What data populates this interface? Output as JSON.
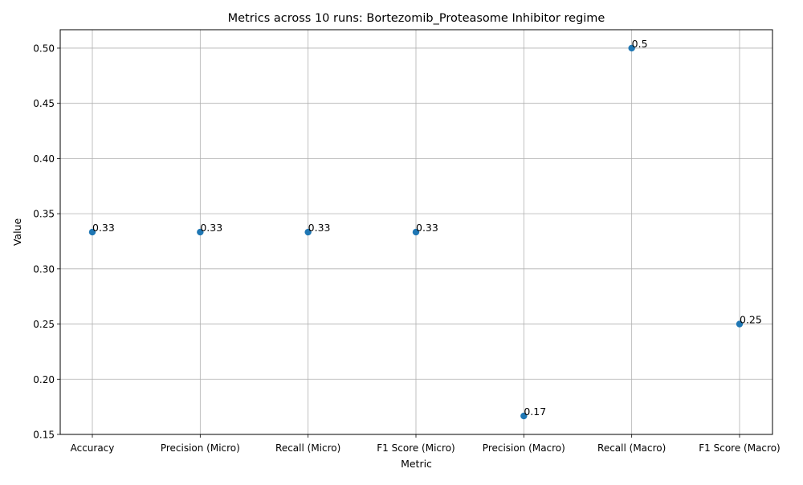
{
  "chart_data": {
    "type": "scatter",
    "title": "Metrics across 10 runs: Bortezomib_Proteasome Inhibitor regime",
    "xlabel": "Metric",
    "ylabel": "Value",
    "categories": [
      "Accuracy",
      "Precision (Micro)",
      "Recall (Micro)",
      "F1 Score (Micro)",
      "Precision (Macro)",
      "Recall (Macro)",
      "F1 Score (Macro)"
    ],
    "values": [
      0.3333,
      0.3333,
      0.3333,
      0.3333,
      0.1667,
      0.5,
      0.25
    ],
    "data_labels": [
      "0.33",
      "0.33",
      "0.33",
      "0.33",
      "0.17",
      "0.5",
      "0.25"
    ],
    "ylim": [
      0.15,
      0.5167
    ],
    "yticks": [
      "0.15",
      "0.20",
      "0.25",
      "0.30",
      "0.35",
      "0.40",
      "0.45",
      "0.50"
    ],
    "grid": true,
    "legend": "none",
    "marker_color": "#1f77b4",
    "grid_color": "#b0b0b0"
  }
}
